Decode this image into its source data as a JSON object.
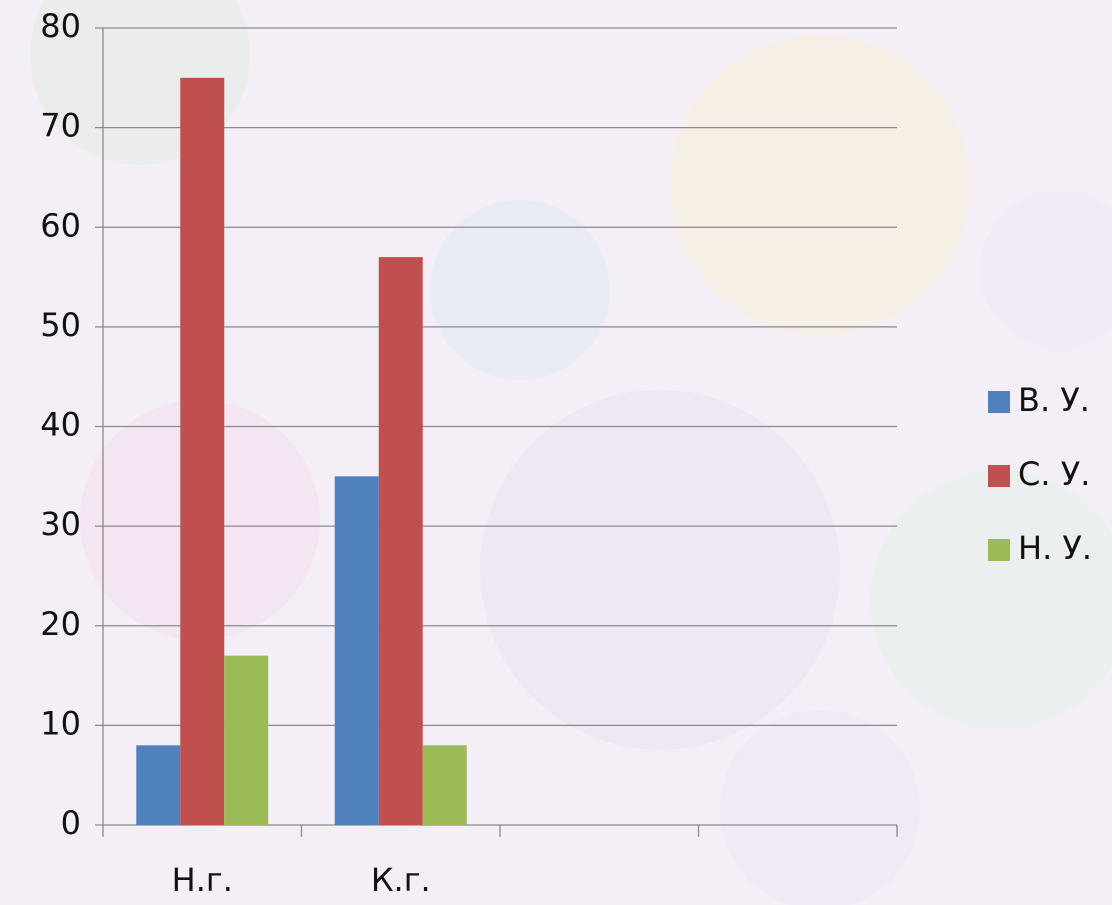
{
  "chart_data": {
    "type": "bar",
    "categories": [
      "Н.г.",
      "К.г.",
      null,
      null
    ],
    "series": [
      {
        "name": "В. У.",
        "color": "#4f81bd",
        "values": [
          8,
          35,
          null,
          null
        ]
      },
      {
        "name": "С. У.",
        "color": "#c0504d",
        "values": [
          75,
          57,
          null,
          null
        ]
      },
      {
        "name": "Н. У.",
        "color": "#9bbb59",
        "values": [
          17,
          8,
          null,
          null
        ]
      }
    ],
    "ylim": [
      0,
      80
    ],
    "yticks": [
      0,
      10,
      20,
      30,
      40,
      50,
      60,
      70,
      80
    ],
    "grid": true,
    "legend": "right"
  }
}
